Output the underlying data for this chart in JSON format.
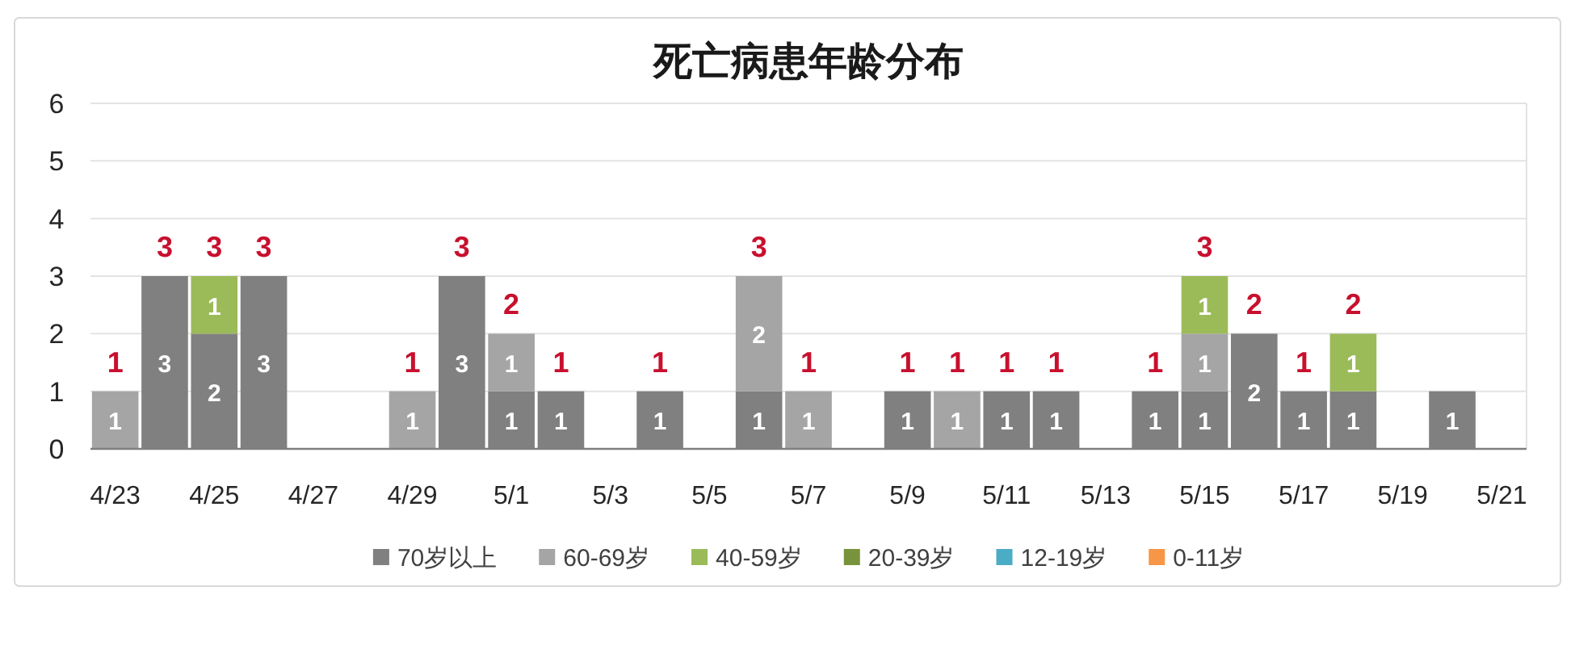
{
  "chart_data": {
    "type": "bar",
    "title": "死亡病患年龄分布",
    "categories": [
      "4/23",
      null,
      "4/25",
      null,
      "4/27",
      null,
      "4/29",
      null,
      "5/1",
      null,
      "5/3",
      null,
      "5/5",
      null,
      "5/7",
      null,
      "5/9",
      null,
      "5/11",
      null,
      "5/13",
      null,
      "5/15",
      null,
      "5/17",
      null,
      "5/19",
      null,
      "5/21"
    ],
    "stacked": true,
    "series": [
      {
        "name": "70岁以上",
        "color": "#808080",
        "values": [
          null,
          3,
          2,
          3,
          null,
          null,
          null,
          3,
          1,
          1,
          null,
          1,
          null,
          1,
          null,
          null,
          1,
          null,
          1,
          1,
          null,
          1,
          1,
          2,
          1,
          1,
          null,
          1,
          null
        ]
      },
      {
        "name": "60-69岁",
        "color": "#a5a5a5",
        "values": [
          1,
          null,
          null,
          null,
          null,
          null,
          1,
          null,
          1,
          null,
          null,
          null,
          null,
          2,
          1,
          null,
          null,
          1,
          null,
          null,
          null,
          null,
          1,
          null,
          null,
          null,
          null,
          null,
          null
        ]
      },
      {
        "name": "40-59岁",
        "color": "#9bbb59",
        "values": [
          null,
          null,
          1,
          null,
          null,
          null,
          null,
          null,
          null,
          null,
          null,
          null,
          null,
          null,
          null,
          null,
          null,
          null,
          null,
          null,
          null,
          null,
          1,
          null,
          null,
          1,
          null,
          null,
          null
        ]
      },
      {
        "name": "20-39岁",
        "color": "#77933c",
        "values": [
          null,
          null,
          null,
          null,
          null,
          null,
          null,
          null,
          null,
          null,
          null,
          null,
          null,
          null,
          null,
          null,
          null,
          null,
          null,
          null,
          null,
          null,
          null,
          null,
          null,
          null,
          null,
          null,
          null
        ]
      },
      {
        "name": "12-19岁",
        "color": "#4bacc6",
        "values": [
          null,
          null,
          null,
          null,
          null,
          null,
          null,
          null,
          null,
          null,
          null,
          null,
          null,
          null,
          null,
          null,
          null,
          null,
          null,
          null,
          null,
          null,
          null,
          null,
          null,
          null,
          null,
          null,
          null
        ]
      },
      {
        "name": "0-11岁",
        "color": "#f79646",
        "values": [
          null,
          null,
          null,
          null,
          null,
          null,
          null,
          null,
          null,
          null,
          null,
          null,
          null,
          null,
          null,
          null,
          null,
          null,
          null,
          null,
          null,
          null,
          null,
          null,
          null,
          null,
          null,
          null,
          null
        ]
      }
    ],
    "ylim": [
      0,
      6
    ],
    "yticks": [
      0,
      1,
      2,
      3,
      4,
      5,
      6
    ],
    "grid": "y",
    "legend": "bottom",
    "data_labels": true,
    "totals": [
      "1",
      "3",
      "3",
      "3",
      null,
      null,
      "1",
      "3",
      "2",
      "1",
      null,
      "1",
      null,
      "3",
      "1",
      null,
      "1",
      "1",
      "1",
      "1",
      null,
      "1",
      "3",
      "2",
      "1",
      "2",
      null,
      null,
      null
    ]
  }
}
